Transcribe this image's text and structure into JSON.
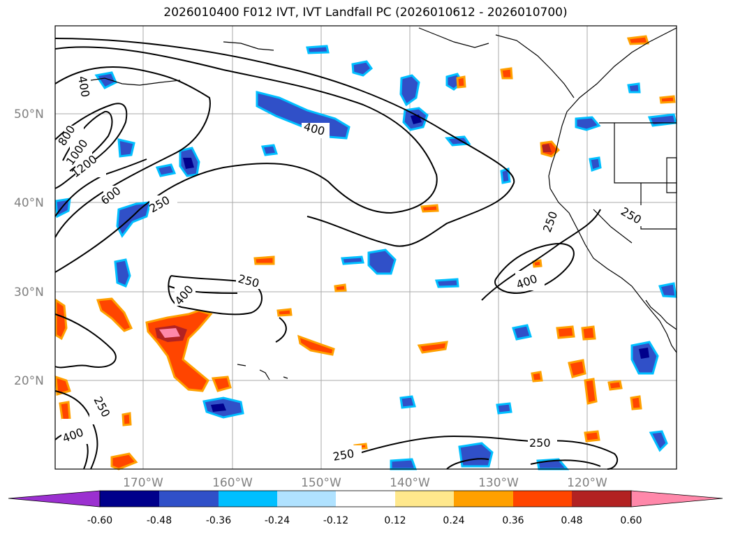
{
  "title": "2026010400 F012 IVT, IVT Landfall PC (2026010612 - 2026010700)",
  "map": {
    "lat_labels": [
      "50°N",
      "40°N",
      "30°N",
      "20°N"
    ],
    "lon_labels": [
      "170°W",
      "160°W",
      "150°W",
      "140°W",
      "130°W",
      "120°W"
    ],
    "contour_labels": [
      "400",
      "800",
      "1000",
      "1200",
      "600",
      "250",
      "400",
      "250",
      "400",
      "250",
      "400",
      "250",
      "250",
      "400",
      "250",
      "250"
    ]
  },
  "colorbar": {
    "colors": [
      "#9b30d0",
      "#00008b",
      "#3050c8",
      "#00bfff",
      "#b0e2ff",
      "#ffffff",
      "#ffe88c",
      "#ffa000",
      "#ff4500",
      "#b22222",
      "#ff88aa"
    ],
    "ticks": [
      "-0.60",
      "-0.48",
      "-0.36",
      "-0.24",
      "-0.12",
      "0.12",
      "0.24",
      "0.36",
      "0.48",
      "0.60"
    ]
  },
  "colors": {
    "frame": "#000000",
    "grid": "#aaaaaa"
  }
}
